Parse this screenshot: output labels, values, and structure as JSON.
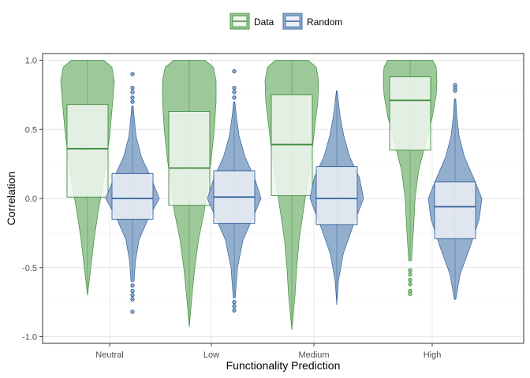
{
  "chart_data": {
    "type": "violin",
    "xlabel": "Functionality Prediction",
    "ylabel": "Correlation",
    "categories": [
      "Neutral",
      "Low",
      "Medium",
      "High"
    ],
    "ylim": [
      -1.05,
      1.05
    ],
    "yticks": [
      1.0,
      0.5,
      0.0,
      -0.5,
      -1.0
    ],
    "ytick_labels": [
      "1.0",
      "0.5",
      "0.0",
      "-0.5",
      "-1.0"
    ],
    "grid": true,
    "legend": {
      "position": "top",
      "entries": [
        "Data",
        "Random"
      ]
    },
    "colors": {
      "Data": {
        "fill": "#9cc89a",
        "stroke": "#3e8e3c",
        "box_fill": "#eef6ee",
        "median": "#3e8e3c"
      },
      "Random": {
        "fill": "#94aecd",
        "stroke": "#31629c",
        "box_fill": "#edf0f6",
        "median": "#31629c"
      }
    },
    "series": [
      {
        "name": "Data",
        "groups": [
          {
            "category": "Neutral",
            "q1": 0.01,
            "median": 0.36,
            "q3": 0.68,
            "min": -0.7,
            "max": 1.0,
            "outliers": [],
            "profile": [
              [
                -0.7,
                0.0
              ],
              [
                -0.5,
                0.04
              ],
              [
                -0.3,
                0.08
              ],
              [
                -0.1,
                0.13
              ],
              [
                0.1,
                0.19
              ],
              [
                0.3,
                0.24
              ],
              [
                0.5,
                0.28
              ],
              [
                0.7,
                0.31
              ],
              [
                0.85,
                0.33
              ],
              [
                0.95,
                0.3
              ],
              [
                1.0,
                0.2
              ]
            ]
          },
          {
            "category": "Low",
            "q1": -0.05,
            "median": 0.22,
            "q3": 0.63,
            "min": -0.93,
            "max": 1.0,
            "outliers": [],
            "profile": [
              [
                -0.93,
                0.0
              ],
              [
                -0.7,
                0.03
              ],
              [
                -0.5,
                0.06
              ],
              [
                -0.3,
                0.1
              ],
              [
                -0.1,
                0.16
              ],
              [
                0.1,
                0.2
              ],
              [
                0.3,
                0.24
              ],
              [
                0.5,
                0.27
              ],
              [
                0.7,
                0.29
              ],
              [
                0.85,
                0.29
              ],
              [
                0.95,
                0.26
              ],
              [
                1.0,
                0.17
              ]
            ]
          },
          {
            "category": "Medium",
            "q1": 0.02,
            "median": 0.39,
            "q3": 0.75,
            "min": -0.95,
            "max": 1.0,
            "outliers": [],
            "profile": [
              [
                -0.95,
                0.0
              ],
              [
                -0.7,
                0.04
              ],
              [
                -0.5,
                0.06
              ],
              [
                -0.3,
                0.09
              ],
              [
                -0.1,
                0.14
              ],
              [
                0.1,
                0.19
              ],
              [
                0.3,
                0.24
              ],
              [
                0.5,
                0.28
              ],
              [
                0.7,
                0.32
              ],
              [
                0.85,
                0.33
              ],
              [
                0.95,
                0.3
              ],
              [
                1.0,
                0.2
              ]
            ]
          },
          {
            "category": "High",
            "q1": 0.35,
            "median": 0.71,
            "q3": 0.88,
            "min": -0.45,
            "max": 1.0,
            "outliers": [
              -0.52,
              -0.55,
              -0.59,
              -0.62,
              -0.67,
              -0.69
            ],
            "profile": [
              [
                -0.45,
                0.02
              ],
              [
                -0.2,
                0.05
              ],
              [
                0.0,
                0.07
              ],
              [
                0.2,
                0.12
              ],
              [
                0.4,
                0.22
              ],
              [
                0.6,
                0.32
              ],
              [
                0.75,
                0.37
              ],
              [
                0.85,
                0.38
              ],
              [
                0.95,
                0.37
              ],
              [
                1.0,
                0.32
              ]
            ]
          }
        ]
      },
      {
        "name": "Random",
        "groups": [
          {
            "category": "Neutral",
            "q1": -0.15,
            "median": 0.0,
            "q3": 0.18,
            "min": -0.6,
            "max": 0.67,
            "outliers": [
              0.9,
              0.8,
              0.77,
              0.73,
              0.7,
              -0.63,
              -0.67,
              -0.7,
              -0.73,
              -0.82
            ],
            "profile": [
              [
                -0.6,
                0.05
              ],
              [
                -0.45,
                0.1
              ],
              [
                -0.3,
                0.22
              ],
              [
                -0.15,
                0.52
              ],
              [
                0.0,
                0.9
              ],
              [
                0.15,
                0.62
              ],
              [
                0.3,
                0.3
              ],
              [
                0.45,
                0.12
              ],
              [
                0.6,
                0.05
              ],
              [
                0.67,
                0.02
              ]
            ]
          },
          {
            "category": "Low",
            "q1": -0.18,
            "median": 0.01,
            "q3": 0.2,
            "min": -0.72,
            "max": 0.7,
            "outliers": [
              0.92,
              0.8,
              0.77,
              0.73,
              -0.75,
              -0.78,
              -0.81
            ],
            "profile": [
              [
                -0.72,
                0.03
              ],
              [
                -0.5,
                0.1
              ],
              [
                -0.3,
                0.27
              ],
              [
                -0.15,
                0.55
              ],
              [
                0.0,
                0.82
              ],
              [
                0.15,
                0.62
              ],
              [
                0.3,
                0.33
              ],
              [
                0.45,
                0.15
              ],
              [
                0.6,
                0.06
              ],
              [
                0.7,
                0.02
              ]
            ]
          },
          {
            "category": "Medium",
            "q1": -0.19,
            "median": 0.0,
            "q3": 0.23,
            "min": -0.77,
            "max": 0.78,
            "outliers": [],
            "profile": [
              [
                -0.77,
                0.0
              ],
              [
                -0.6,
                0.05
              ],
              [
                -0.4,
                0.2
              ],
              [
                -0.2,
                0.5
              ],
              [
                0.0,
                0.83
              ],
              [
                0.15,
                0.7
              ],
              [
                0.3,
                0.4
              ],
              [
                0.45,
                0.22
              ],
              [
                0.6,
                0.1
              ],
              [
                0.78,
                0.01
              ]
            ]
          },
          {
            "category": "High",
            "q1": -0.29,
            "median": -0.06,
            "q3": 0.12,
            "min": -0.73,
            "max": 0.72,
            "outliers": [
              0.82,
              0.8,
              0.78
            ],
            "profile": [
              [
                -0.73,
                0.02
              ],
              [
                -0.55,
                0.15
              ],
              [
                -0.35,
                0.45
              ],
              [
                -0.15,
                0.72
              ],
              [
                0.0,
                0.8
              ],
              [
                0.15,
                0.55
              ],
              [
                0.3,
                0.28
              ],
              [
                0.45,
                0.12
              ],
              [
                0.6,
                0.05
              ],
              [
                0.72,
                0.02
              ]
            ]
          }
        ]
      }
    ]
  }
}
